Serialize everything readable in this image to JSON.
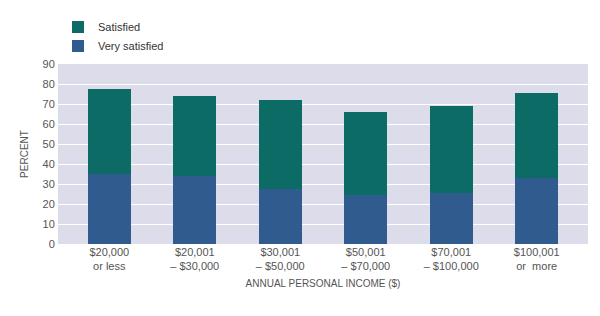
{
  "chart_data": {
    "type": "bar",
    "stacked": true,
    "categories": [
      "$20,000\nor less",
      "$20,001\n– $30,000",
      "$30,001\n– $50,000",
      "$50,001\n– $70,000",
      "$70,001\n– $100,000",
      "$100,001\nor  more"
    ],
    "series": [
      {
        "name": "Very satisfied",
        "color": "#2f5b8e",
        "values": [
          35,
          34,
          27.5,
          24.5,
          25.5,
          33
        ]
      },
      {
        "name": "Satisfied",
        "color": "#0d6b66",
        "values": [
          42.5,
          40,
          44.5,
          41.5,
          43.5,
          42.5
        ]
      }
    ],
    "xlabel": "ANNUAL PERSONAL INCOME ($)",
    "ylabel": "PERCENT",
    "ylim": [
      0,
      90
    ],
    "yticks": [
      0,
      10,
      20,
      30,
      40,
      50,
      60,
      70,
      80,
      90
    ],
    "grid": true,
    "legend": "top-left"
  }
}
